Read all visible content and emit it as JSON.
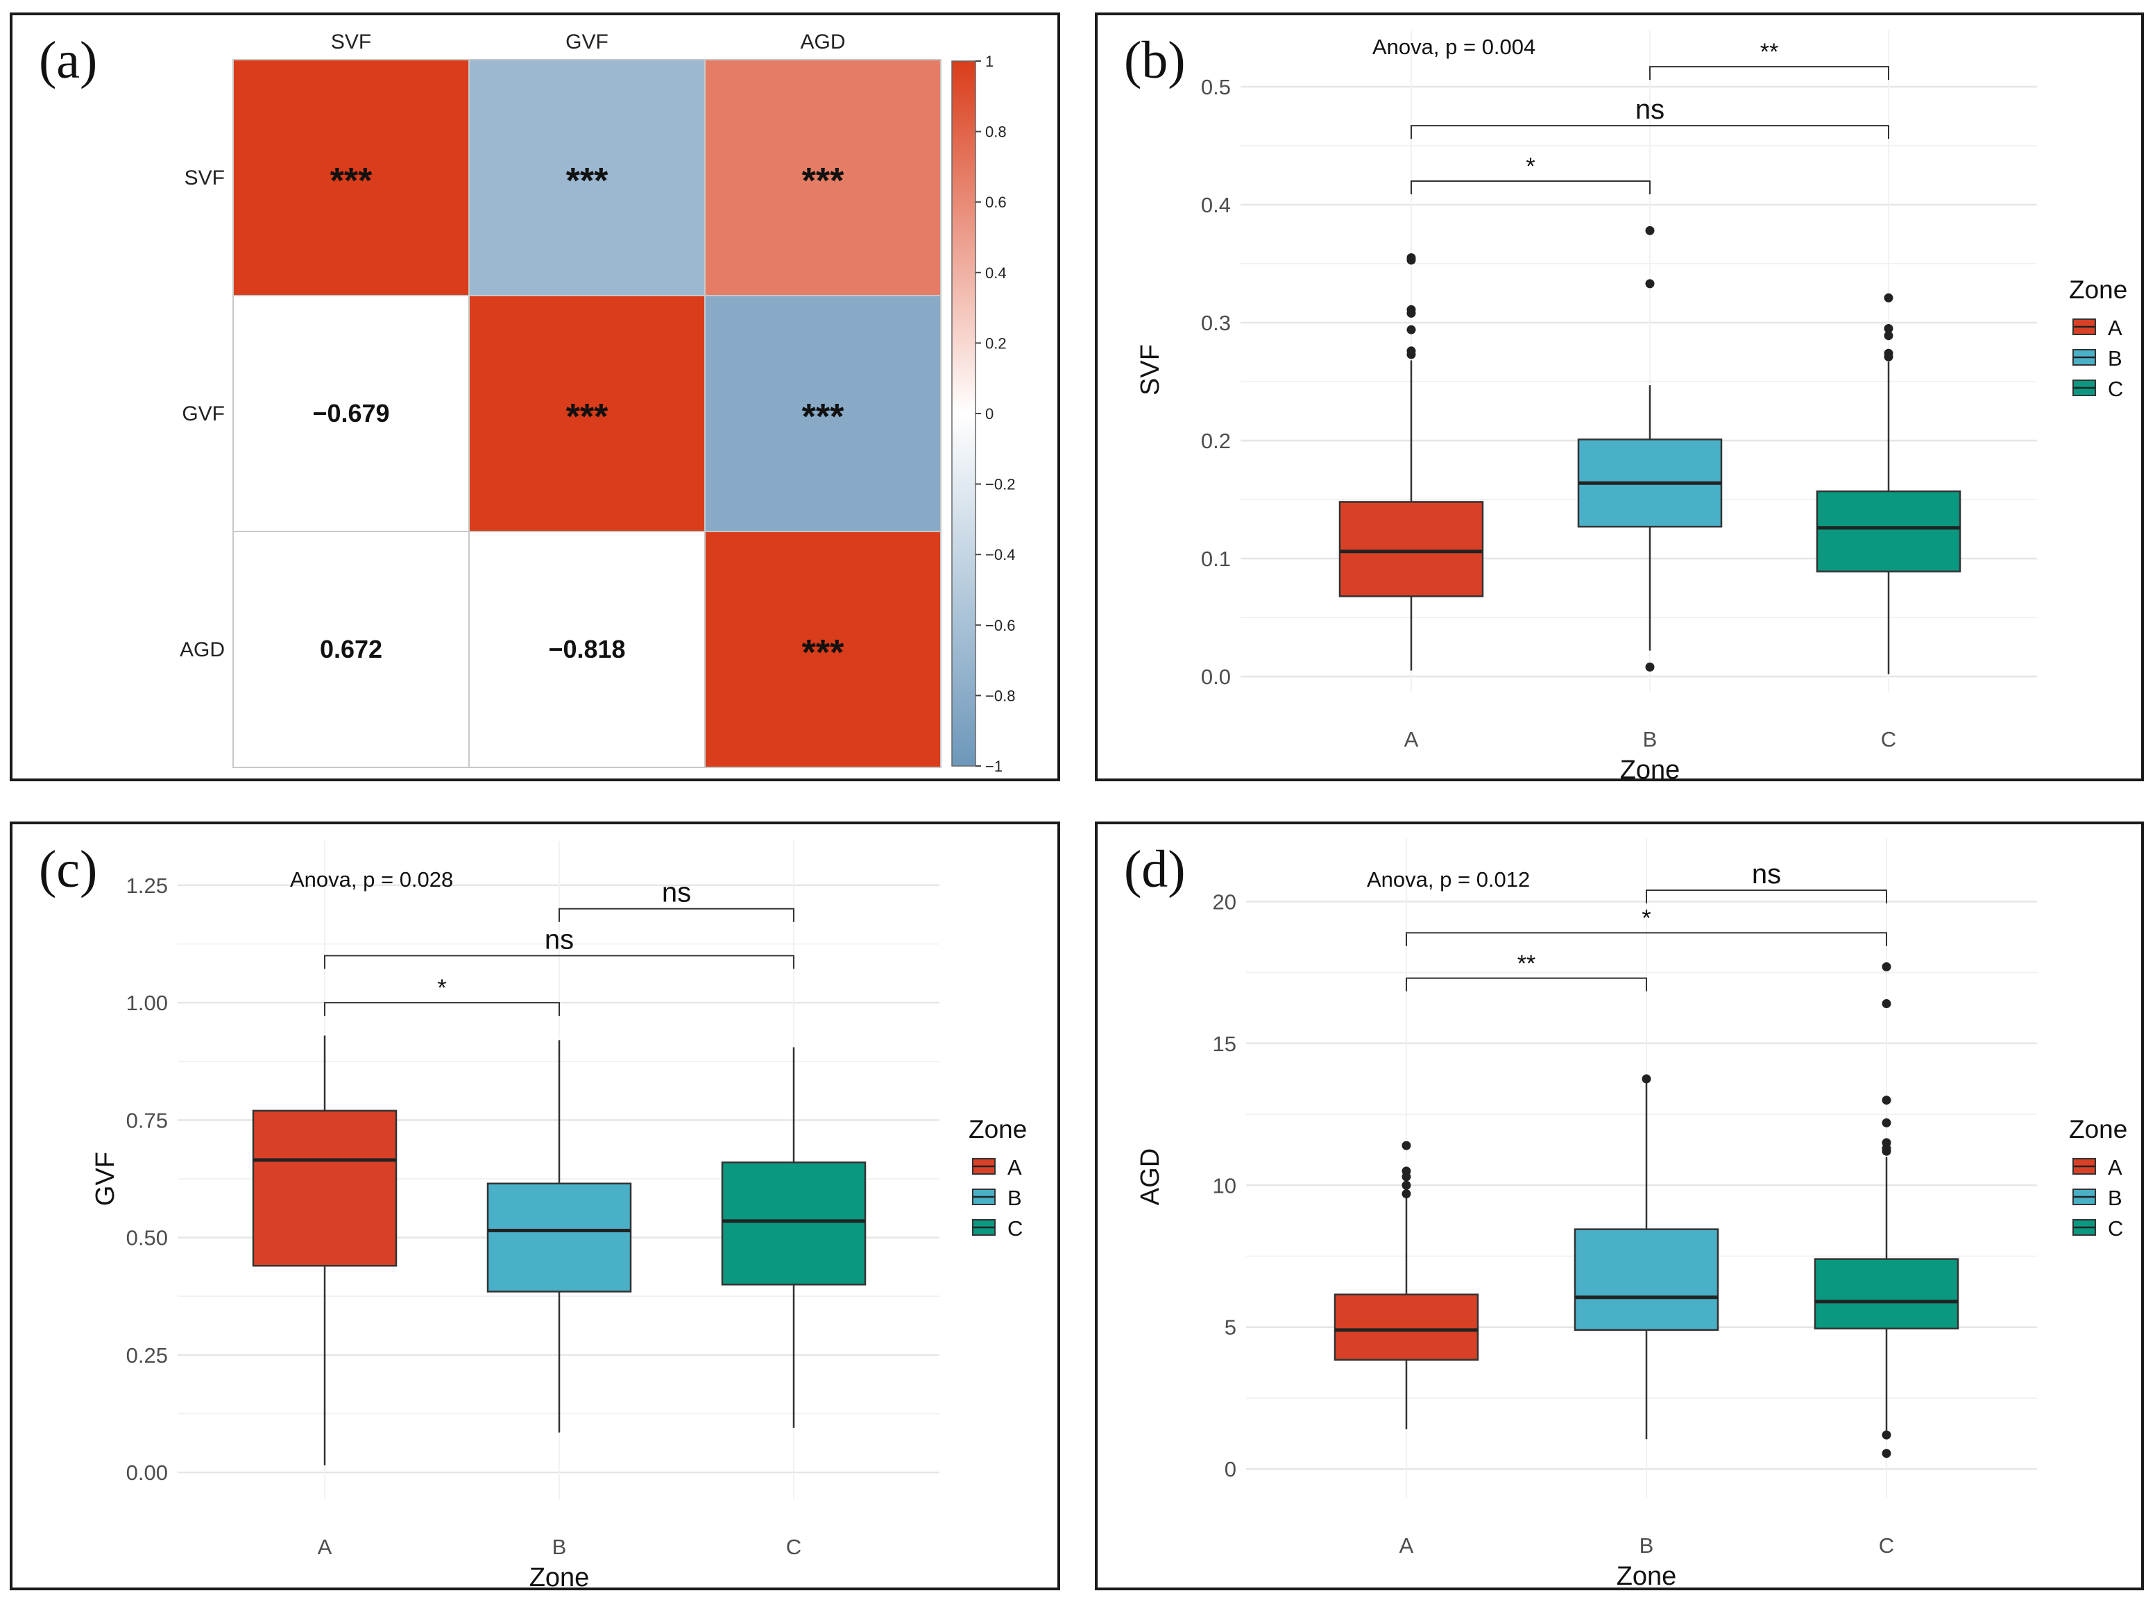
{
  "colors": {
    "A": "#d94126",
    "B": "#4ab0c8",
    "C": "#0b9880",
    "grid": "#e6e6e6",
    "whisker": "#333333",
    "median": "#222222"
  },
  "correlation": {
    "panel_label": "(a)",
    "variables": [
      "SVF",
      "GVF",
      "AGD"
    ],
    "matrix": [
      [
        1,
        -0.679,
        0.672
      ],
      [
        -0.679,
        1,
        -0.818
      ],
      [
        0.672,
        -0.818,
        1
      ]
    ],
    "upper_text": "***",
    "lower_text": [
      [
        "",
        "",
        ""
      ],
      [
        "−0.679",
        "",
        ""
      ],
      [
        "0.672",
        "−0.818",
        ""
      ]
    ],
    "colorbar_ticks": [
      "1",
      "0.8",
      "0.6",
      "0.4",
      "0.2",
      "0",
      "−0.2",
      "−0.4",
      "−0.6",
      "−0.8",
      "−1"
    ],
    "scale_colors": {
      "neg": "#6d97ba",
      "mid": "#ffffff",
      "pos": "#d93d1b"
    }
  },
  "chart_data": [
    {
      "type": "heatmap",
      "variables": [
        "SVF",
        "GVF",
        "AGD"
      ],
      "values": [
        [
          1,
          -0.679,
          0.672
        ],
        [
          -0.679,
          1,
          -0.818
        ],
        [
          0.672,
          -0.818,
          1
        ]
      ],
      "significance": "***",
      "colorbar_range": [
        -1,
        1
      ]
    },
    {
      "type": "box",
      "panel_label": "(b)",
      "xlabel": "Zone",
      "ylabel": "SVF",
      "categories": [
        "A",
        "B",
        "C"
      ],
      "ylim": [
        -0.01,
        0.53
      ],
      "yticks": [
        0,
        0.1,
        0.2,
        0.3,
        0.4,
        0.5
      ],
      "ytick_labels": [
        "0.0",
        "0.1",
        "0.2",
        "0.3",
        "0.4",
        "0.5"
      ],
      "anova_text": "Anova, p = 0.004",
      "legend_title": "Zone",
      "legend_labels": [
        "A",
        "B",
        "C"
      ],
      "boxes": [
        {
          "group": "A",
          "q1": 0.068,
          "median": 0.106,
          "q3": 0.148,
          "low": 0.005,
          "high": 0.268,
          "outliers": [
            0.355,
            0.353,
            0.311,
            0.308,
            0.294,
            0.276,
            0.273
          ]
        },
        {
          "group": "B",
          "q1": 0.127,
          "median": 0.164,
          "q3": 0.201,
          "low": 0.022,
          "high": 0.247,
          "outliers": [
            0.378,
            0.333,
            0.008
          ]
        },
        {
          "group": "C",
          "q1": 0.089,
          "median": 0.126,
          "q3": 0.157,
          "low": 0.002,
          "high": 0.267,
          "outliers": [
            0.321,
            0.295,
            0.289,
            0.274,
            0.271
          ]
        }
      ],
      "brackets": [
        {
          "from": 0,
          "to": 1,
          "y": 0.42,
          "label": "*",
          "size": 34
        },
        {
          "from": 0,
          "to": 2,
          "y": 0.467,
          "label": "ns",
          "size": 40
        },
        {
          "from": 1,
          "to": 2,
          "y": 0.517,
          "label": "**",
          "size": 34
        }
      ]
    },
    {
      "type": "box",
      "panel_label": "(c)",
      "xlabel": "Zone",
      "ylabel": "GVF",
      "categories": [
        "A",
        "B",
        "C"
      ],
      "ylim": [
        -0.05,
        1.3
      ],
      "yticks": [
        0,
        0.25,
        0.5,
        0.75,
        1,
        1.25
      ],
      "ytick_labels": [
        "0.00",
        "0.25",
        "0.50",
        "0.75",
        "1.00",
        "1.25"
      ],
      "anova_text": "Anova, p = 0.028",
      "legend_title": "Zone",
      "legend_labels": [
        "A",
        "B",
        "C"
      ],
      "boxes": [
        {
          "group": "A",
          "q1": 0.44,
          "median": 0.665,
          "q3": 0.77,
          "low": 0.015,
          "high": 0.93,
          "outliers": []
        },
        {
          "group": "B",
          "q1": 0.385,
          "median": 0.515,
          "q3": 0.615,
          "low": 0.085,
          "high": 0.92,
          "outliers": []
        },
        {
          "group": "C",
          "q1": 0.4,
          "median": 0.535,
          "q3": 0.66,
          "low": 0.095,
          "high": 0.905,
          "outliers": []
        }
      ],
      "brackets": [
        {
          "from": 0,
          "to": 1,
          "y": 1.0,
          "label": "*",
          "size": 34
        },
        {
          "from": 0,
          "to": 2,
          "y": 1.1,
          "label": "ns",
          "size": 40
        },
        {
          "from": 1,
          "to": 2,
          "y": 1.2,
          "label": "ns",
          "size": 40
        }
      ]
    },
    {
      "type": "box",
      "panel_label": "(d)",
      "xlabel": "Zone",
      "ylabel": "AGD",
      "categories": [
        "A",
        "B",
        "C"
      ],
      "ylim": [
        -0.9,
        21.5
      ],
      "yticks": [
        0,
        5,
        10,
        15,
        20
      ],
      "ytick_labels": [
        "0",
        "5",
        "10",
        "15",
        "20"
      ],
      "anova_text": "Anova, p = 0.012",
      "legend_title": "Zone",
      "legend_labels": [
        "A",
        "B",
        "C"
      ],
      "boxes": [
        {
          "group": "A",
          "q1": 3.85,
          "median": 4.9,
          "q3": 6.15,
          "low": 1.4,
          "high": 9.6,
          "outliers": [
            11.4,
            10.5,
            10.3,
            10.0,
            9.7
          ]
        },
        {
          "group": "B",
          "q1": 4.9,
          "median": 6.05,
          "q3": 8.45,
          "low": 1.05,
          "high": 13.75,
          "outliers": [
            13.75
          ]
        },
        {
          "group": "C",
          "q1": 4.95,
          "median": 5.9,
          "q3": 7.4,
          "low": 1.2,
          "high": 11.0,
          "outliers": [
            17.7,
            16.4,
            13.0,
            12.2,
            11.5,
            11.3,
            11.2,
            1.2,
            0.55
          ]
        }
      ],
      "brackets": [
        {
          "from": 0,
          "to": 1,
          "y": 17.3,
          "label": "**",
          "size": 34
        },
        {
          "from": 0,
          "to": 2,
          "y": 18.9,
          "label": "*",
          "size": 34
        },
        {
          "from": 1,
          "to": 2,
          "y": 20.4,
          "label": "ns",
          "size": 40
        }
      ]
    }
  ]
}
